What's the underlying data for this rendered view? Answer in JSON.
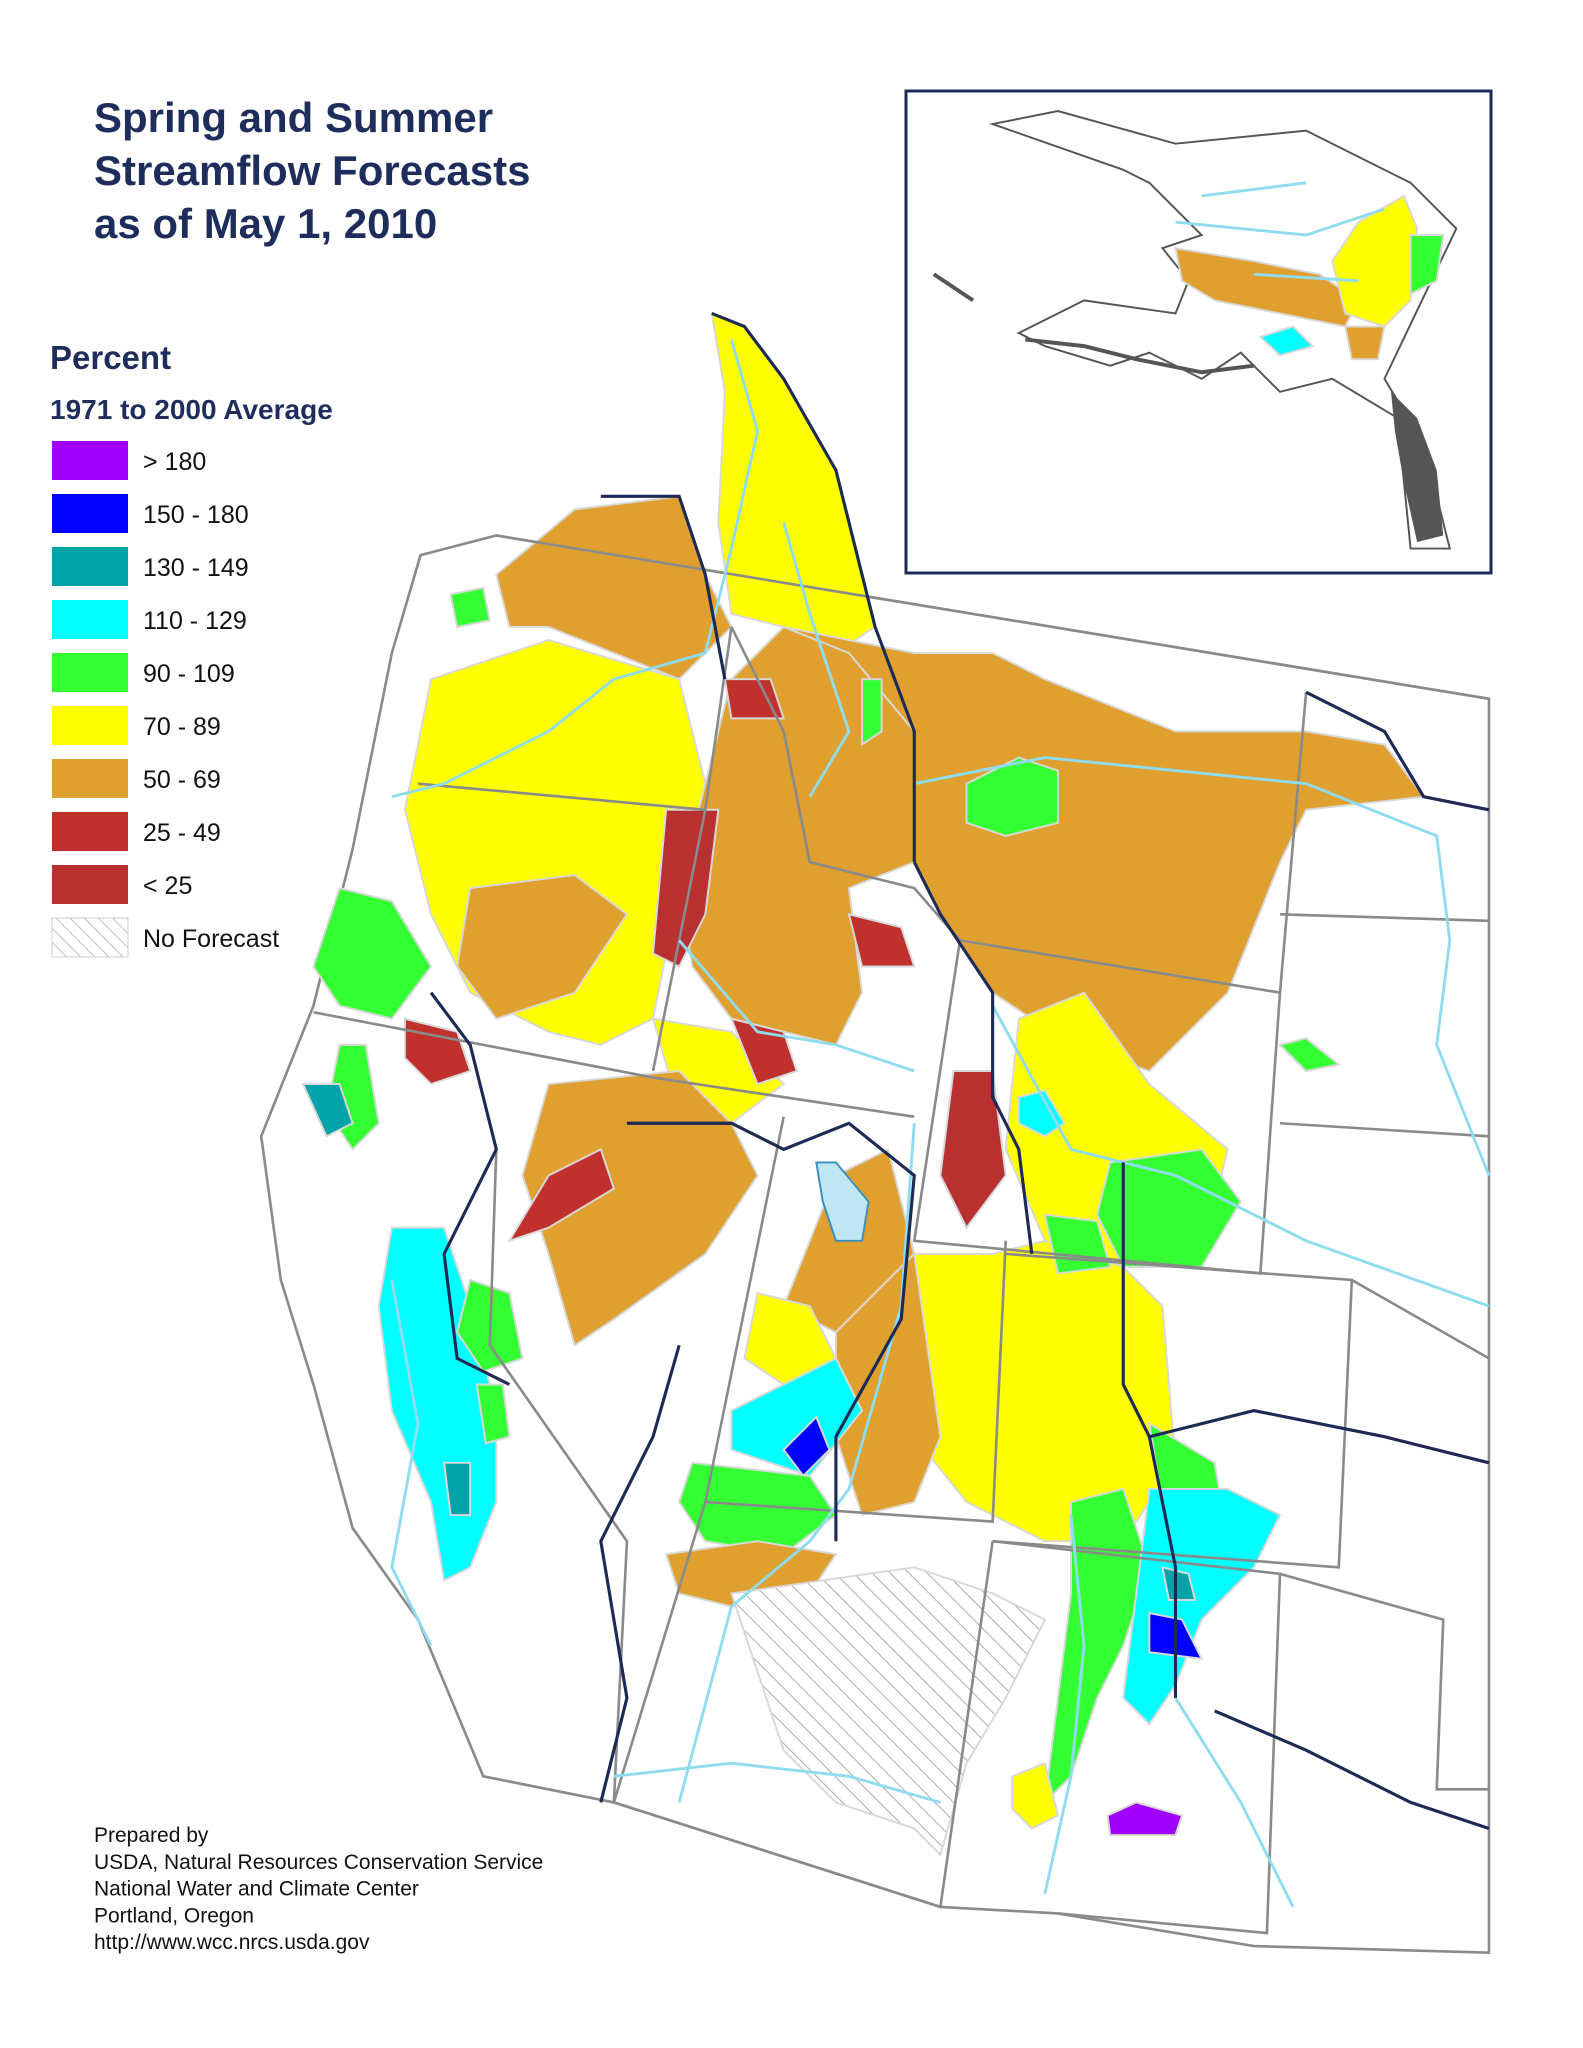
{
  "title": [
    "Spring and Summer",
    "Streamflow Forecasts",
    "as of May 1, 2010"
  ],
  "legend": {
    "heading": "Percent",
    "subheading": "1971 to 2000 Average",
    "items": [
      {
        "label": "> 180",
        "color": "#a000ff"
      },
      {
        "label": "150 - 180",
        "color": "#0000ff"
      },
      {
        "label": "130 - 149",
        "color": "#00a3a8"
      },
      {
        "label": "110 - 129",
        "color": "#00ffff"
      },
      {
        "label": "90 - 109",
        "color": "#33ff33"
      },
      {
        "label": "70 - 89",
        "color": "#ffff00"
      },
      {
        "label": "50 - 69",
        "color": "#e0a030"
      },
      {
        "label": "25 - 49",
        "color": "#c0302c"
      },
      {
        "label": "< 25",
        "color": "#b83030"
      },
      {
        "label": "No Forecast"
      }
    ]
  },
  "credits": [
    "Prepared by",
    "USDA, Natural Resources Conservation Service",
    "National Water and Climate Center",
    "Portland, Oregon",
    "http://www.wcc.nrcs.usda.gov"
  ]
}
